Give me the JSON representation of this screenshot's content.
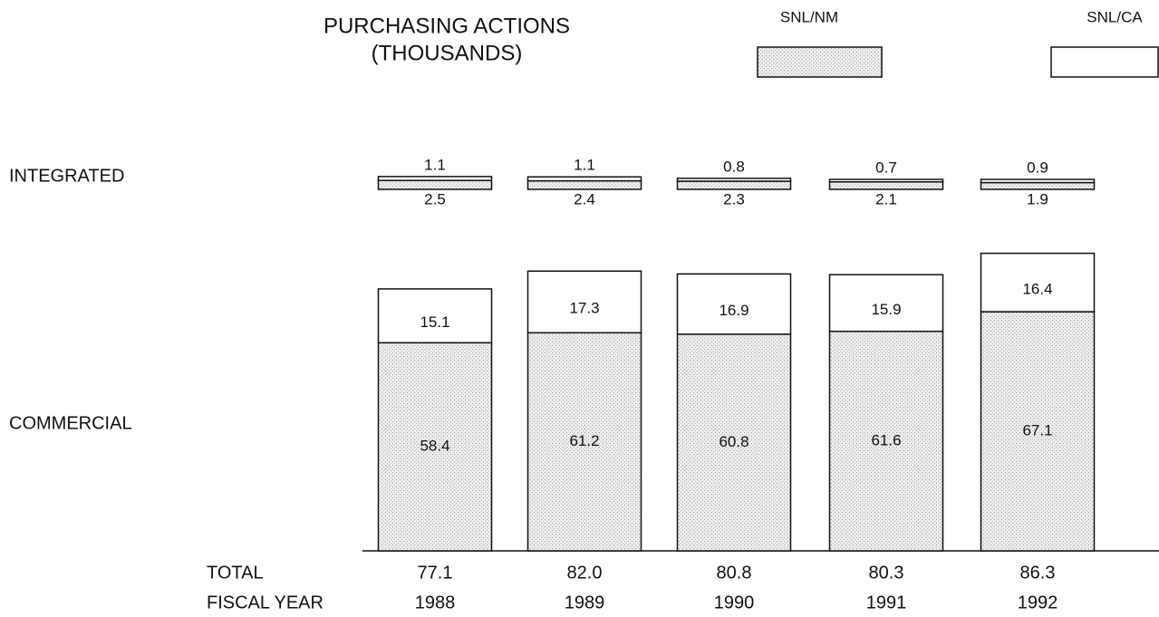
{
  "chart_data": {
    "type": "stacked_bar",
    "title": [
      "PURCHASING ACTIONS",
      "(THOUSANDS)"
    ],
    "categories": [
      "1988",
      "1989",
      "1990",
      "1991",
      "1992"
    ],
    "category_label": "FISCAL YEAR",
    "legend": [
      {
        "name": "SNL/NM",
        "color": "#e4e4e4"
      },
      {
        "name": "SNL/CA",
        "color": "#ffffff"
      }
    ],
    "groups": [
      {
        "name": "INTEGRATED",
        "series": [
          [
            2.5,
            2.4,
            2.3,
            2.1,
            1.9
          ],
          [
            1.1,
            1.1,
            0.8,
            0.7,
            0.9
          ]
        ]
      },
      {
        "name": "COMMERCIAL",
        "series": [
          [
            58.4,
            61.2,
            60.8,
            61.6,
            67.1
          ],
          [
            15.1,
            17.3,
            16.9,
            15.9,
            16.4
          ]
        ]
      }
    ],
    "total": {
      "name": "TOTAL",
      "values": [
        77.1,
        82,
        80.8,
        80.3,
        86.3
      ],
      "value_labels": [
        "77.1",
        "82.0",
        "80.8",
        "80.3",
        "86.3"
      ]
    },
    "ylim": [
      0,
      90
    ]
  }
}
